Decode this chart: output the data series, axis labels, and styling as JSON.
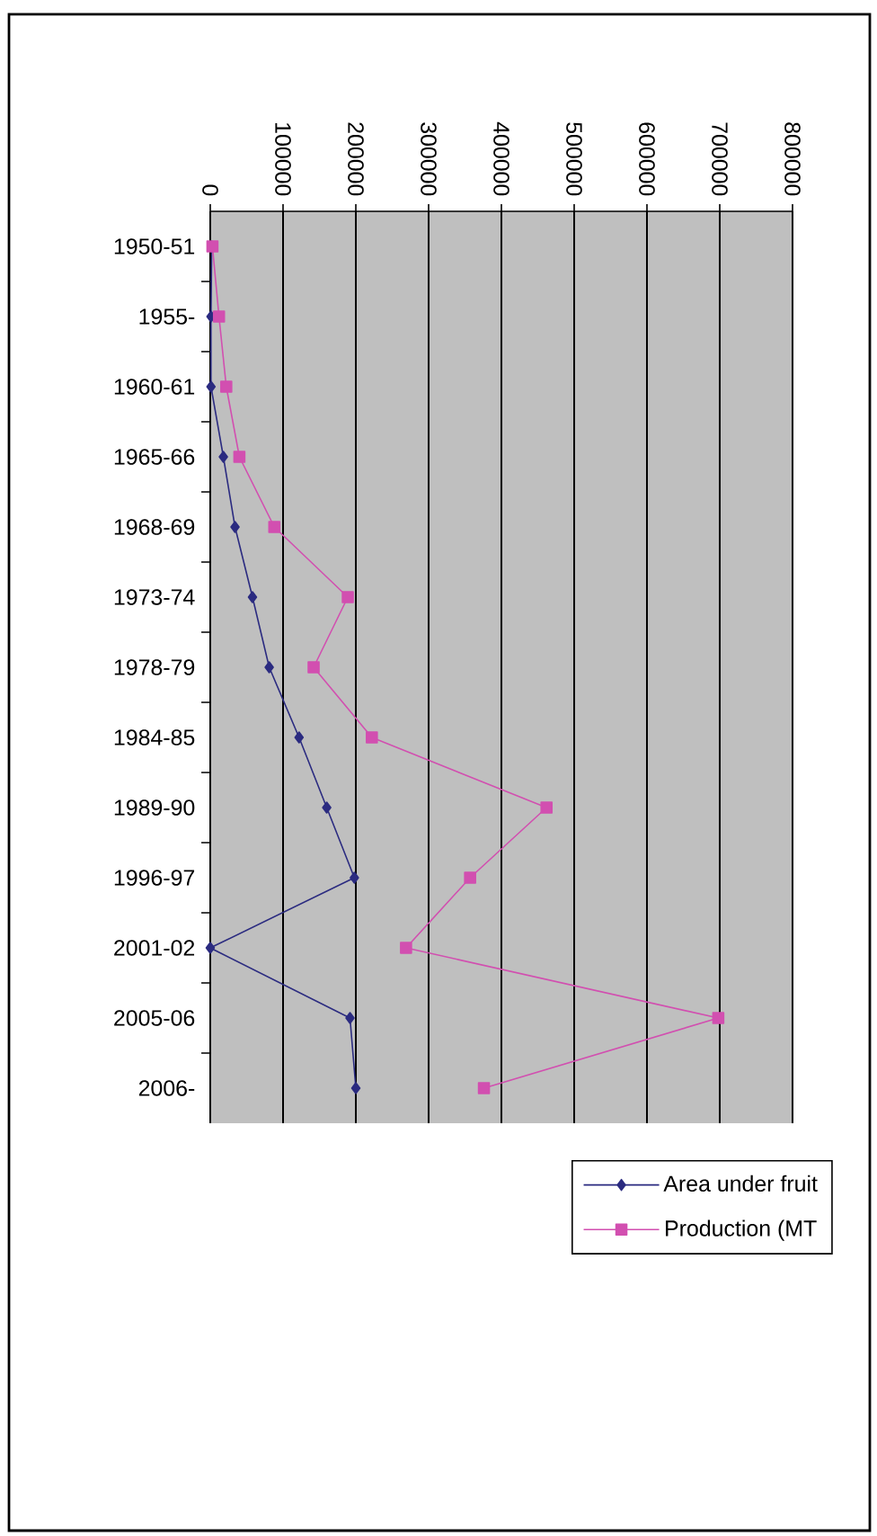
{
  "chart_data": {
    "type": "line",
    "orientation": "horizontal",
    "categories": [
      "1950-51",
      "1955-",
      "1960-61",
      "1965-66",
      "1968-69",
      "1973-74",
      "1978-79",
      "1984-85",
      "1989-90",
      "1996-97",
      "2001-02",
      "2005-06",
      "2006-"
    ],
    "series": [
      {
        "name": "Area under fruit",
        "color": "#2b2b80",
        "marker": "diamond",
        "values": [
          2000,
          1000,
          1000,
          18000,
          34000,
          58000,
          81000,
          122000,
          160000,
          198000,
          0,
          192000,
          200000
        ]
      },
      {
        "name": "Production (MT",
        "color": "#d24fb0",
        "marker": "square",
        "values": [
          3000,
          12000,
          22000,
          40000,
          88000,
          189000,
          142000,
          222000,
          462000,
          357000,
          269000,
          698000,
          376000
        ]
      }
    ],
    "xlim": [
      0,
      800000
    ],
    "xticks": [
      0,
      100000,
      200000,
      300000,
      400000,
      500000,
      600000,
      700000,
      800000
    ],
    "grid": "x",
    "legend": "bottom",
    "line_style": "solid"
  }
}
